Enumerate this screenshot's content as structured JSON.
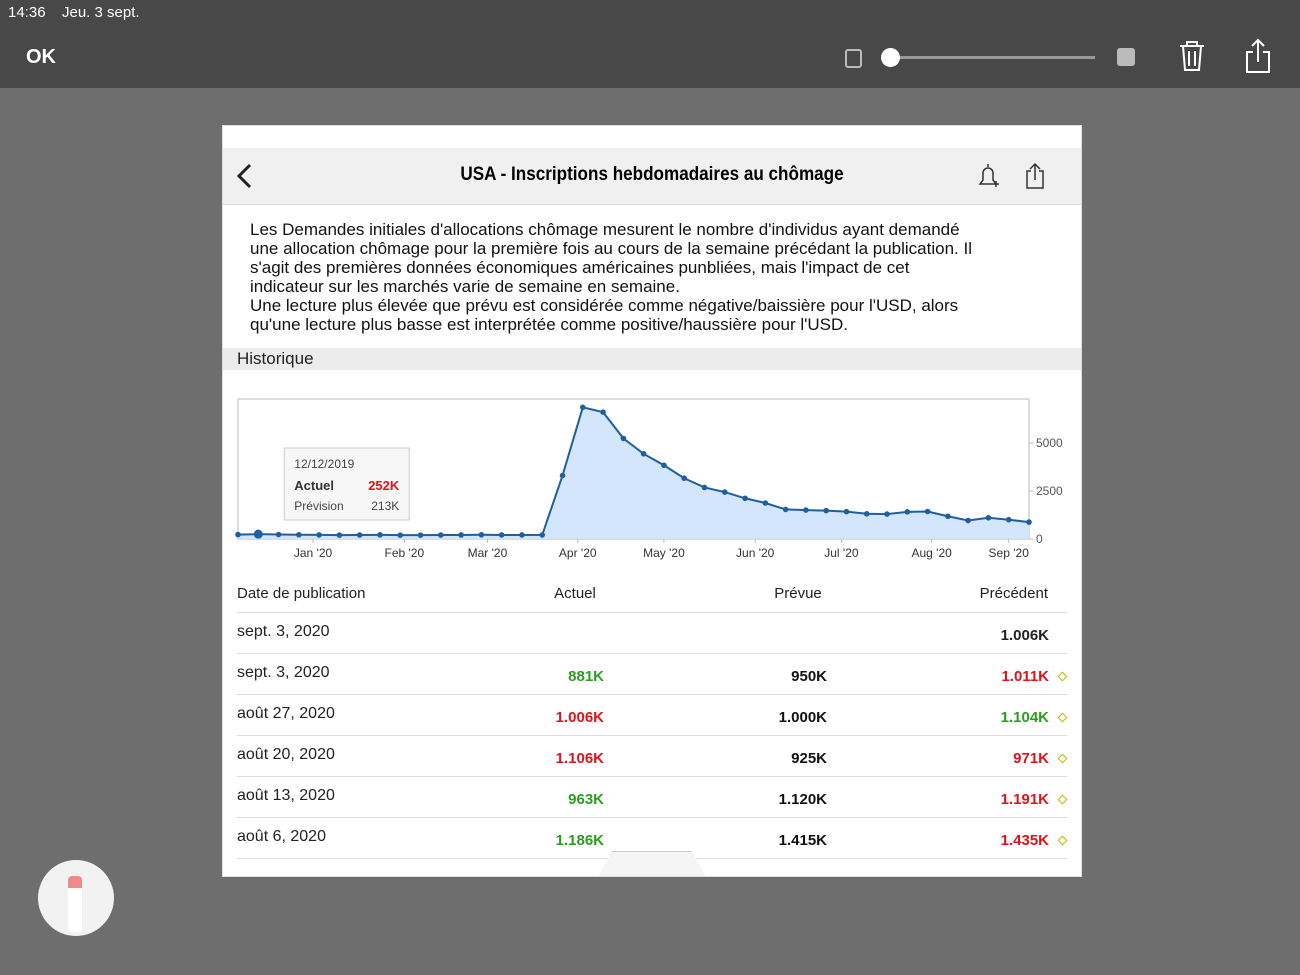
{
  "status_bar": {
    "time": "14:36",
    "date": "Jeu. 3 sept."
  },
  "toolbar": {
    "done": "OK"
  },
  "header": {
    "title": "USA - Inscriptions hebdomadaires au chômage"
  },
  "description": [
    "Les Demandes initiales d'allocations chômage mesurent le nombre d'individus ayant demandé",
    "une allocation chômage pour la première fois au cours de la semaine précédant la publication. Il",
    "s'agit des premières données économiques américaines punbliées, mais l'impact de cet",
    "indicateur sur les marchés varie de semaine en semaine.",
    "Une lecture plus élevée que prévu est considérée comme négative/baissière pour l'USD, alors",
    "qu'une lecture plus basse est interprétée comme positive/haussière pour l'USD."
  ],
  "section": "Historique",
  "chart_data": {
    "type": "line",
    "series": [
      {
        "name": "Actuel",
        "color": "#1f5fa0",
        "fill": "#cfe3fb",
        "values": [
          230,
          252,
          234,
          222,
          214,
          204,
          208,
          216,
          202,
          202,
          206,
          210,
          219,
          211,
          211,
          212,
          3307,
          6867,
          6615,
          5245,
          4442,
          3846,
          3169,
          2687,
          2446,
          2123,
          1877,
          1542,
          1508,
          1480,
          1427,
          1314,
          1300,
          1416,
          1434,
          1186,
          963,
          1106,
          1006,
          881
        ]
      }
    ],
    "xlim": [
      0,
      39
    ],
    "xticks": [
      {
        "value": 3.7,
        "label": "Jan '20"
      },
      {
        "value": 8.2,
        "label": "Feb '20"
      },
      {
        "value": 12.3,
        "label": "Mar '20"
      },
      {
        "value": 16.75,
        "label": "Apr '20"
      },
      {
        "value": 21,
        "label": "May '20"
      },
      {
        "value": 25.5,
        "label": "Jun '20"
      },
      {
        "value": 29.75,
        "label": "Jul '20"
      },
      {
        "value": 34.2,
        "label": "Aug '20"
      },
      {
        "value": 38,
        "label": "Sep '20"
      }
    ],
    "ylim": [
      0,
      7300
    ],
    "yticks": [
      0,
      2500,
      5000
    ],
    "tooltip": {
      "index": 1,
      "date": "12/12/2019",
      "actual_label": "Actuel",
      "actual": "252K",
      "forecast_label": "Prévision",
      "forecast": "213K"
    }
  },
  "table": {
    "headers": [
      "Date de publication",
      "Actuel",
      "Prévue",
      "Précédent"
    ],
    "rows": [
      {
        "date": "sept. 3, 2020",
        "actual": "",
        "actual_color": "#000",
        "forecast": "",
        "previous": "1.006K",
        "previous_color": "#222"
      },
      {
        "date": "sept. 3, 2020",
        "actual": "881K",
        "actual_color": "#2a9d1e",
        "forecast": "950K",
        "previous": "1.011K",
        "previous_color": "#e0121a"
      },
      {
        "date": "août 27, 2020",
        "actual": "1.006K",
        "actual_color": "#e0121a",
        "forecast": "1.000K",
        "previous": "1.104K",
        "previous_color": "#2a9d1e"
      },
      {
        "date": "août 20, 2020",
        "actual": "1.106K",
        "actual_color": "#e0121a",
        "forecast": "925K",
        "previous": "971K",
        "previous_color": "#e0121a"
      },
      {
        "date": "août 13, 2020",
        "actual": "963K",
        "actual_color": "#2a9d1e",
        "forecast": "1.120K",
        "previous": "1.191K",
        "previous_color": "#e0121a"
      },
      {
        "date": "août 6, 2020",
        "actual": "1.186K",
        "actual_color": "#2a9d1e",
        "forecast": "1.415K",
        "previous": "1.435K",
        "previous_color": "#e0121a"
      }
    ]
  }
}
